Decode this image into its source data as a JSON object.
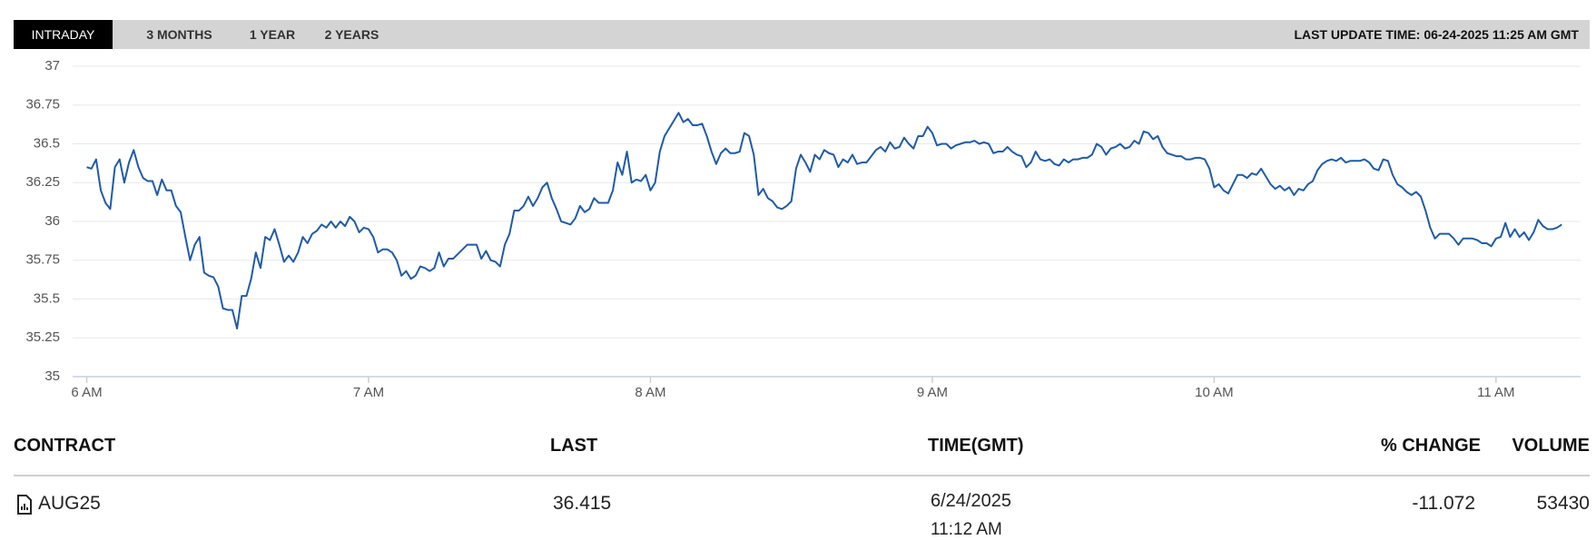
{
  "tabs": [
    "INTRADAY",
    "3 MONTHS",
    "1 YEAR",
    "2 YEARS"
  ],
  "last_update": "LAST UPDATE TIME: 06-24-2025 11:25 AM GMT",
  "chart_data": {
    "type": "line",
    "color": "#1f5ba6",
    "grid": true,
    "xlim": [
      357,
      678
    ],
    "xticks": [
      {
        "value": 360,
        "label": "6 AM"
      },
      {
        "value": 420,
        "label": "7 AM"
      },
      {
        "value": 480,
        "label": "8 AM"
      },
      {
        "value": 540,
        "label": "9 AM"
      },
      {
        "value": 600,
        "label": "10 AM"
      },
      {
        "value": 660,
        "label": "11 AM"
      }
    ],
    "ylim": [
      35,
      37
    ],
    "yticks": [
      35,
      35.25,
      35.5,
      35.75,
      36,
      36.25,
      36.5,
      36.75,
      37
    ],
    "x": [
      360,
      361,
      362,
      363,
      364,
      365,
      366,
      367,
      368,
      369,
      370,
      371,
      372,
      373,
      374,
      375,
      376,
      377,
      378,
      379,
      380,
      381,
      382,
      383,
      384,
      385,
      386,
      387,
      388,
      389,
      390,
      391,
      392,
      393,
      394,
      395,
      396,
      397,
      398,
      399,
      400,
      401,
      402,
      403,
      404,
      405,
      406,
      407,
      408,
      409,
      410,
      411,
      412,
      413,
      414,
      415,
      416,
      417,
      418,
      419,
      420,
      421,
      422,
      423,
      424,
      425,
      426,
      427,
      428,
      429,
      430,
      431,
      432,
      433,
      434,
      435,
      436,
      437,
      438,
      439,
      440,
      441,
      442,
      443,
      444,
      445,
      446,
      447,
      448,
      449,
      450,
      451,
      452,
      453,
      454,
      455,
      456,
      457,
      458,
      459,
      460,
      461,
      462,
      463,
      464,
      465,
      466,
      467,
      468,
      469,
      470,
      471,
      472,
      473,
      474,
      475,
      476,
      477,
      478,
      479,
      480,
      481,
      482,
      483,
      484,
      485,
      486,
      487,
      488,
      489,
      490,
      491,
      492,
      493,
      494,
      495,
      496,
      497,
      498,
      499,
      500,
      501,
      502,
      503,
      504,
      505,
      506,
      507,
      508,
      509,
      510,
      511,
      512,
      513,
      514,
      515,
      516,
      517,
      518,
      519,
      520,
      521,
      522,
      523,
      524,
      525,
      526,
      527,
      528,
      529,
      530,
      531,
      532,
      533,
      534,
      535,
      536,
      537,
      538,
      539,
      540,
      541,
      542,
      543,
      544,
      545,
      546,
      547,
      548,
      549,
      550,
      551,
      552,
      553,
      554,
      555,
      556,
      557,
      558,
      559,
      560,
      561,
      562,
      563,
      564,
      565,
      566,
      567,
      568,
      569,
      570,
      571,
      572,
      573,
      574,
      575,
      576,
      577,
      578,
      579,
      580,
      581,
      582,
      583,
      584,
      585,
      586,
      587,
      588,
      589,
      590,
      591,
      592,
      593,
      594,
      595,
      596,
      597,
      598,
      599,
      600,
      601,
      602,
      603,
      604,
      605,
      606,
      607,
      608,
      609,
      610,
      611,
      612,
      613,
      614,
      615,
      616,
      617,
      618,
      619,
      620,
      621,
      622,
      623,
      624,
      625,
      626,
      627,
      628,
      629,
      630,
      631,
      632,
      633,
      634,
      635,
      636,
      637,
      638,
      639,
      640,
      641,
      642,
      643,
      644,
      645,
      646,
      647,
      648,
      649,
      650,
      651,
      652,
      653,
      654,
      655,
      656,
      657,
      658,
      659,
      660,
      661,
      662,
      663,
      664,
      665,
      666,
      667,
      668,
      669,
      670,
      671,
      672,
      673,
      674
    ],
    "values": [
      36.35,
      36.34,
      36.4,
      36.2,
      36.12,
      36.08,
      36.35,
      36.4,
      36.25,
      36.38,
      36.46,
      36.35,
      36.28,
      36.26,
      36.26,
      36.17,
      36.27,
      36.2,
      36.2,
      36.1,
      36.06,
      35.9,
      35.75,
      35.85,
      35.9,
      35.67,
      35.65,
      35.64,
      35.58,
      35.44,
      35.43,
      35.43,
      35.31,
      35.52,
      35.52,
      35.63,
      35.8,
      35.7,
      35.9,
      35.88,
      35.95,
      35.85,
      35.74,
      35.78,
      35.74,
      35.8,
      35.9,
      35.86,
      35.92,
      35.94,
      35.98,
      35.96,
      36.0,
      35.96,
      36.0,
      35.97,
      36.03,
      36.0,
      35.93,
      35.96,
      35.95,
      35.9,
      35.8,
      35.82,
      35.82,
      35.8,
      35.75,
      35.65,
      35.68,
      35.63,
      35.65,
      35.71,
      35.7,
      35.68,
      35.7,
      35.8,
      35.71,
      35.76,
      35.76,
      35.79,
      35.82,
      35.85,
      35.85,
      35.85,
      35.76,
      35.81,
      35.75,
      35.74,
      35.71,
      35.85,
      35.92,
      36.07,
      36.07,
      36.1,
      36.16,
      36.1,
      36.15,
      36.22,
      36.25,
      36.15,
      36.08,
      36.0,
      35.99,
      35.98,
      36.02,
      36.1,
      36.06,
      36.08,
      36.15,
      36.12,
      36.12,
      36.12,
      36.2,
      36.38,
      36.3,
      36.45,
      36.25,
      36.27,
      36.26,
      36.3,
      36.2,
      36.25,
      36.45,
      36.55,
      36.6,
      36.65,
      36.7,
      36.64,
      36.66,
      36.62,
      36.62,
      36.63,
      36.55,
      36.45,
      36.37,
      36.44,
      36.47,
      36.44,
      36.44,
      36.45,
      36.57,
      36.55,
      36.43,
      36.17,
      36.21,
      36.15,
      36.13,
      36.09,
      36.08,
      36.1,
      36.13,
      36.34,
      36.43,
      36.38,
      36.32,
      36.43,
      36.4,
      36.46,
      36.44,
      36.43,
      36.35,
      36.4,
      36.38,
      36.43,
      36.37,
      36.38,
      36.38,
      36.42,
      36.46,
      36.48,
      36.45,
      36.51,
      36.47,
      36.48,
      36.54,
      36.5,
      36.47,
      36.55,
      36.55,
      36.61,
      36.57,
      36.49,
      36.5,
      36.5,
      36.47,
      36.49,
      36.5,
      36.51,
      36.51,
      36.52,
      36.5,
      36.51,
      36.5,
      36.44,
      36.45,
      36.45,
      36.48,
      36.45,
      36.43,
      36.42,
      36.35,
      36.38,
      36.45,
      36.4,
      36.39,
      36.4,
      36.37,
      36.36,
      36.4,
      36.38,
      36.4,
      36.4,
      36.41,
      36.41,
      36.43,
      36.5,
      36.48,
      36.43,
      36.47,
      36.48,
      36.5,
      36.47,
      36.48,
      36.52,
      36.5,
      36.58,
      36.57,
      36.53,
      36.55,
      36.48,
      36.44,
      36.43,
      36.42,
      36.42,
      36.4,
      36.4,
      36.41,
      36.41,
      36.4,
      36.34,
      36.22,
      36.24,
      36.2,
      36.18,
      36.24,
      36.3,
      36.3,
      36.28,
      36.31,
      36.3,
      36.34,
      36.29,
      36.24,
      36.21,
      36.23,
      36.2,
      36.22,
      36.17,
      36.21,
      36.2,
      36.24,
      36.26,
      36.33,
      36.37,
      36.39,
      36.4,
      36.39,
      36.41,
      36.38,
      36.39,
      36.39,
      36.39,
      36.4,
      36.38,
      36.34,
      36.33,
      36.4,
      36.39,
      36.3,
      36.24,
      36.22,
      36.19,
      36.17,
      36.19,
      36.16,
      36.07,
      35.96,
      35.89,
      35.92,
      35.92,
      35.92,
      35.89,
      35.85,
      35.89,
      35.89,
      35.89,
      35.88,
      35.86,
      35.86,
      35.84,
      35.89,
      35.9,
      35.99,
      35.9,
      35.95,
      35.9,
      35.93,
      35.88,
      35.93,
      36.01,
      35.97,
      35.95,
      35.95,
      35.96,
      35.98
    ]
  },
  "table": {
    "columns": [
      "CONTRACT",
      "LAST",
      "TIME(GMT)",
      "% CHANGE",
      "VOLUME"
    ],
    "rows": [
      [
        "AUG25",
        "36.415",
        [
          "6/24/2025",
          "11:12 AM"
        ],
        "-11.072",
        "53430"
      ]
    ]
  }
}
